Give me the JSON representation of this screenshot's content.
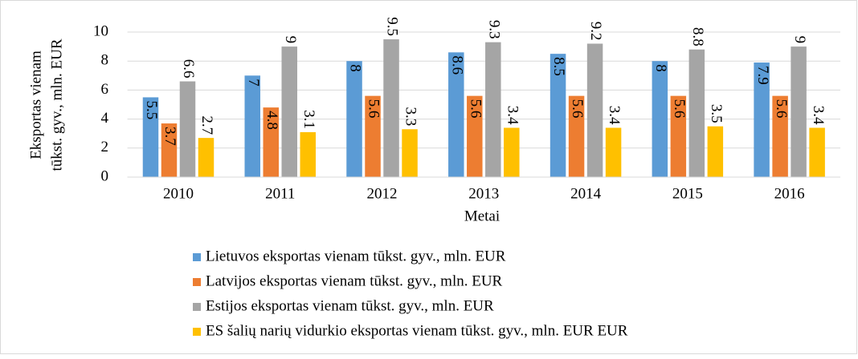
{
  "chart_data": {
    "type": "bar",
    "y_label": [
      "Eksportas vienam",
      "tūkst. gyv., mln. EUR"
    ],
    "x_label": "Metai",
    "categories": [
      "2010",
      "2011",
      "2012",
      "2013",
      "2014",
      "2015",
      "2016"
    ],
    "series": [
      {
        "name": "Lietuvos eksportas vienam tūkst. gyv., mln. EUR",
        "color": "#5b9bd5",
        "values": [
          5.5,
          7,
          8,
          8.6,
          8.5,
          8,
          7.9
        ]
      },
      {
        "name": "Latvijos eksportas vienam tūkst. gyv., mln. EUR",
        "color": "#ed7d31",
        "values": [
          3.7,
          4.8,
          5.6,
          5.6,
          5.6,
          5.6,
          5.6
        ]
      },
      {
        "name": "Estijos eksportas vienam tūkst. gyv., mln. EUR",
        "color": "#a5a5a5",
        "values": [
          6.6,
          9,
          9.5,
          9.3,
          9.2,
          8.8,
          9
        ]
      },
      {
        "name": "ES šalių narių vidurkio eksportas vienam tūkst. gyv., mln. EUR EUR",
        "color": "#ffc000",
        "values": [
          2.7,
          3.1,
          3.3,
          3.4,
          3.4,
          3.5,
          3.4
        ]
      }
    ],
    "ylim": [
      0,
      10
    ],
    "yticks": [
      0,
      2,
      4,
      6,
      8,
      10
    ],
    "grid": true,
    "legend": "bottom"
  }
}
